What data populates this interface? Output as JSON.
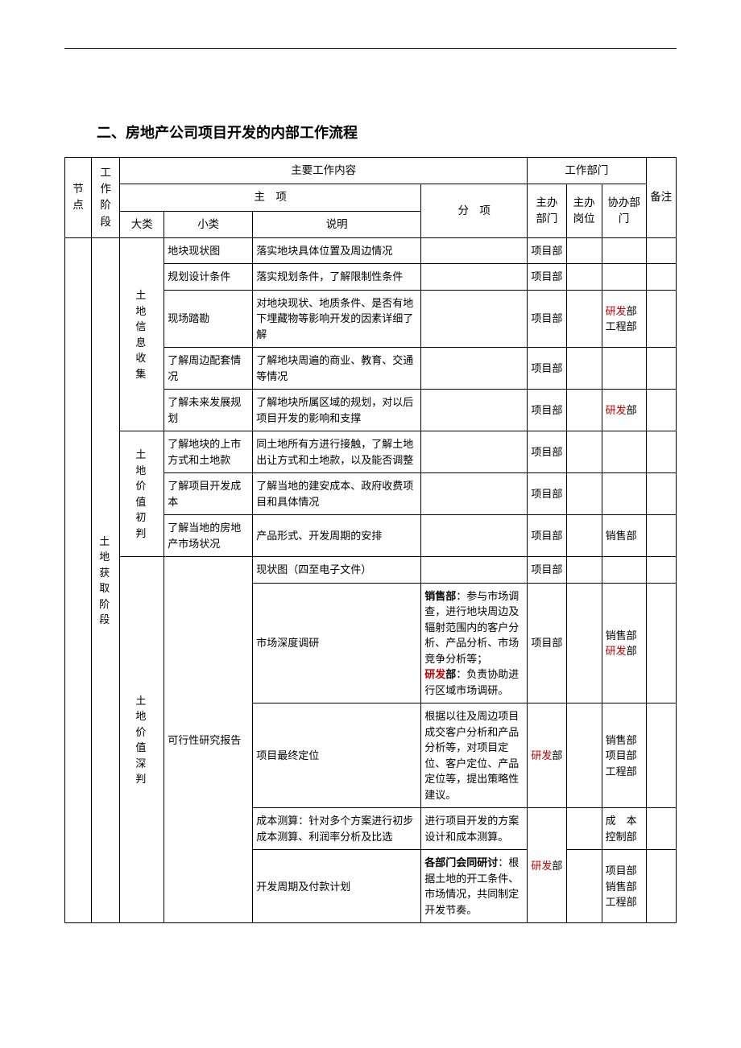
{
  "title": "二、房地产公司项目开发的内部工作流程",
  "header": {
    "node": "节点",
    "stage": "工作阶段",
    "main_content": "主要工作内容",
    "work_dept": "工作部门",
    "main_item": "主　项",
    "branch_item": "分　项",
    "cat": "大类",
    "sub": "小类",
    "desc": "说明",
    "dept": "主办部门",
    "pos": "主办岗位",
    "assist": "协办部门",
    "note": "备注"
  },
  "stage_label": "土地获取阶段",
  "groups": [
    {
      "cat": "土地信息收集",
      "rows": [
        {
          "sub": "地块现状图",
          "desc": "落实地块具体位置及周边情况",
          "branch": "",
          "dept": "项目部",
          "assist_plain": "",
          "assist_html": ""
        },
        {
          "sub": "规划设计条件",
          "desc": "落实规划条件，了解限制性条件",
          "branch": "",
          "dept": "项目部",
          "assist_plain": "",
          "assist_html": ""
        },
        {
          "sub": "现场踏勘",
          "desc": "对地块现状、地质条件、是否有地下埋藏物等影响开发的因素详细了解",
          "branch": "",
          "dept": "项目部",
          "assist_plain": "",
          "assist_html": "<span class=\"red\">研发</span>部<br>工程部"
        },
        {
          "sub": "了解周边配套情况",
          "desc": "了解地块周遍的商业、教育、交通等情况",
          "branch": "",
          "dept": "项目部",
          "assist_plain": "",
          "assist_html": ""
        },
        {
          "sub": "了解未来发展规划",
          "desc": "了解地块所属区域的规划，对以后项目开发的影响和支撑",
          "branch": "",
          "dept": "项目部",
          "assist_plain": "",
          "assist_html": "<span class=\"red\">研发</span>部"
        }
      ]
    },
    {
      "cat": "土地价值初判",
      "rows": [
        {
          "sub": "了解地块的上市方式和土地款",
          "desc": "同土地所有方进行接触，了解土地出让方式和土地款，以及能否调整",
          "branch": "",
          "dept": "项目部",
          "assist_plain": "",
          "assist_html": ""
        },
        {
          "sub": "了解项目开发成本",
          "desc": "了解当地的建安成本、政府收费项目和具体情况",
          "branch": "",
          "dept": "项目部",
          "assist_plain": "",
          "assist_html": ""
        },
        {
          "sub": "了解当地的房地产市场状况",
          "desc": "产品形式、开发周期的安排",
          "branch": "",
          "dept": "项目部",
          "assist_plain": "销售部",
          "assist_html": "销售部"
        }
      ]
    }
  ],
  "deep": {
    "cat": "土地价值深判",
    "sub": "可行性研究报告",
    "rows": [
      {
        "desc": "现状图（四至电子文件）",
        "branch_html": "",
        "dept_html": "项目部",
        "assist_html": ""
      },
      {
        "desc": "市场深度调研",
        "branch_html": "<span class=\"bold\">销售部</span>：参与市场调查，进行地块周边及辐射范围内的客户分析、产品分析、市场竞争分析等；<br><span class=\"bold\"><span class=\"red\">研发</span>部</span>：负责协助进行区域市场调研。",
        "dept_html": "项目部",
        "assist_html": "销售部<br><span class=\"red\">研发</span>部"
      },
      {
        "desc": "项目最终定位",
        "branch_html": "根据以往及周边项目成交客户分析和产品分析等，对项目定位、客户定位、产品定位等，提出策略性建议。",
        "dept_html": "<span class=\"red\">研发</span>部",
        "assist_html": "销售部<br>项目部<br>工程部"
      },
      {
        "desc": "成本测算：针对多个方案进行初步成本测算、利润率分析及比选",
        "branch_html": "进行项目开发的方案设计和成本测算。",
        "dept_html": "",
        "assist_html": "成　本<br>控制部"
      },
      {
        "desc": "开发周期及付款计划",
        "branch_html": "<span class=\"bold\">各部门会同研讨</span>：根据土地的开工条件、市场情况，共同制定开发节奏。",
        "dept_html": "<span class=\"red\">研发</span>部",
        "assist_html": "项目部<br>销售部<br>工程部"
      }
    ]
  },
  "colors": {
    "text": "#000000",
    "highlight": "#c00000",
    "border": "#000000",
    "background": "#ffffff"
  }
}
